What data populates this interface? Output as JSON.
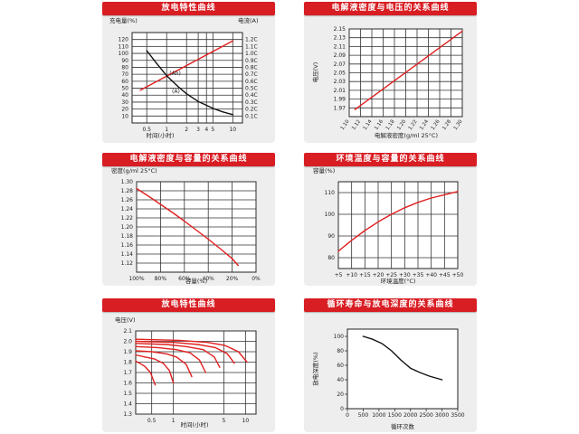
{
  "chart_data": [
    {
      "id": "c1",
      "type": "line",
      "title": "放电特性曲线",
      "xlabel": "时间(小时)",
      "ylabel": "充电量(%)",
      "y2label": "电流(A)",
      "xscale": "log",
      "xlim": [
        0.3,
        14
      ],
      "ylim": [
        0,
        130
      ],
      "y2lim": [
        0,
        1.3
      ],
      "xticks": [
        "0.5",
        "1",
        "2",
        "3",
        "4",
        "5",
        "10"
      ],
      "xtick_values": [
        0.5,
        1,
        2,
        3,
        4,
        5,
        10
      ],
      "yticks": [
        10,
        20,
        30,
        40,
        50,
        60,
        70,
        80,
        90,
        100,
        110,
        120
      ],
      "y2ticks": [
        "0.1C",
        "0.2C",
        "0.3C",
        "0.4C",
        "0.5C",
        "0.6C",
        "0.7C",
        "0.8C",
        "0.9C",
        "1.0C",
        "1.1C",
        "1.2C"
      ],
      "y2tick_values": [
        0.1,
        0.2,
        0.3,
        0.4,
        0.5,
        0.6,
        0.7,
        0.8,
        0.9,
        1.0,
        1.1,
        1.2
      ],
      "grid": true,
      "series": [
        {
          "name": "(Ah)",
          "axis": "left",
          "color": "#e02020",
          "x": [
            0.4,
            10
          ],
          "y": [
            47,
            118
          ]
        },
        {
          "name": "(A)",
          "axis": "right",
          "color": "#111111",
          "x": [
            0.5,
            0.7,
            1,
            1.5,
            2,
            3,
            5,
            7,
            10
          ],
          "y": [
            1.04,
            0.86,
            0.68,
            0.52,
            0.42,
            0.31,
            0.21,
            0.16,
            0.12
          ]
        }
      ],
      "annotations": [
        {
          "text": "(Ah)",
          "x": 1.1,
          "y": 69
        },
        {
          "text": "(A)",
          "x": 1.2,
          "y": 43
        }
      ]
    },
    {
      "id": "c2",
      "type": "line",
      "title": "电解液密度与电压的关系曲线",
      "xlabel": "电解液密度(g/ml 25°C)",
      "ylabel": "电压(V)",
      "xlim": [
        1.1,
        1.3
      ],
      "ylim": [
        1.95,
        2.15
      ],
      "xticks": [
        "1.10",
        "1.12",
        "1.14",
        "1.16",
        "1.18",
        "1.20",
        "1.22",
        "1.24",
        "1.26",
        "1.28",
        "1.30"
      ],
      "yticks": [
        "1.97",
        "1.99",
        "2.01",
        "2.03",
        "2.05",
        "2.07",
        "2.09",
        "2.11",
        "2.13",
        "2.15"
      ],
      "grid": true,
      "series": [
        {
          "color": "#e02020",
          "x": [
            1.11,
            1.3
          ],
          "y": [
            1.966,
            2.145
          ]
        }
      ]
    },
    {
      "id": "c3",
      "type": "line",
      "title": "电解液密度与容量的关系曲线",
      "xlabel": "容量(%)",
      "ylabel": "密度(g/ml 25°C)",
      "xlim": [
        100,
        0
      ],
      "ylim": [
        1.1,
        1.3
      ],
      "xticks": [
        "100%",
        "80%",
        "60%",
        "40%",
        "20%",
        "0%"
      ],
      "xtick_values": [
        100,
        80,
        60,
        40,
        20,
        0
      ],
      "yticks": [
        "1.12",
        "1.14",
        "1.16",
        "1.18",
        "1.20",
        "1.22",
        "1.24",
        "1.26",
        "1.28",
        "1.30"
      ],
      "grid": true,
      "series": [
        {
          "color": "#e02020",
          "x": [
            100,
            90,
            80,
            70,
            60,
            50,
            40,
            30,
            20,
            15
          ],
          "y": [
            1.285,
            1.268,
            1.25,
            1.232,
            1.213,
            1.193,
            1.173,
            1.152,
            1.13,
            1.115
          ]
        }
      ]
    },
    {
      "id": "c4",
      "type": "line",
      "title": "环境温度与容量的关系曲线",
      "xlabel": "环境温度(°C)",
      "ylabel": "容量(%)",
      "xlim": [
        5,
        50
      ],
      "ylim": [
        75,
        115
      ],
      "xticks": [
        "+5",
        "+10",
        "+15",
        "+20",
        "+25",
        "+30",
        "+35",
        "+40",
        "+45",
        "+50"
      ],
      "xtick_values": [
        5,
        10,
        15,
        20,
        25,
        30,
        35,
        40,
        45,
        50
      ],
      "yticks": [
        "80",
        "90",
        "100",
        "110"
      ],
      "ytick_values": [
        80,
        90,
        100,
        110
      ],
      "grid": true,
      "series": [
        {
          "color": "#e02020",
          "x": [
            5,
            10,
            15,
            20,
            25,
            30,
            35,
            40,
            45,
            50
          ],
          "y": [
            83,
            88,
            92.5,
            96.5,
            100,
            103,
            105.5,
            107.5,
            109,
            110.5
          ]
        }
      ]
    },
    {
      "id": "c5",
      "type": "line",
      "title": "放电特性曲线",
      "xlabel": "时间(小时)",
      "ylabel": "电压(V)",
      "xscale": "log",
      "xlim": [
        0.3,
        14
      ],
      "ylim": [
        1.3,
        2.1
      ],
      "xticks": [
        "0.5",
        "1",
        "5",
        "10"
      ],
      "xtick_values": [
        0.5,
        1,
        5,
        10
      ],
      "yticks": [
        "1.3",
        "1.4",
        "1.5",
        "1.6",
        "1.7",
        "1.8",
        "1.9",
        "2.0",
        "2.1"
      ],
      "grid": true,
      "series": [
        {
          "color": "#e02020",
          "x": [
            0.3,
            0.34,
            0.4,
            0.48,
            0.56
          ],
          "y": [
            1.81,
            1.79,
            1.76,
            1.7,
            1.58
          ]
        },
        {
          "color": "#e02020",
          "x": [
            0.3,
            0.4,
            0.55,
            0.72,
            0.88,
            1.0
          ],
          "y": [
            1.87,
            1.85,
            1.83,
            1.79,
            1.72,
            1.6
          ]
        },
        {
          "color": "#e02020",
          "x": [
            0.3,
            0.5,
            0.8,
            1.1,
            1.5,
            1.8
          ],
          "y": [
            1.91,
            1.9,
            1.88,
            1.85,
            1.78,
            1.66
          ]
        },
        {
          "color": "#e02020",
          "x": [
            0.3,
            0.6,
            1.1,
            1.7,
            2.3,
            2.8
          ],
          "y": [
            1.95,
            1.94,
            1.92,
            1.89,
            1.82,
            1.7
          ]
        },
        {
          "color": "#e02020",
          "x": [
            0.3,
            0.8,
            1.5,
            2.6,
            3.7,
            4.4
          ],
          "y": [
            1.98,
            1.97,
            1.95,
            1.92,
            1.85,
            1.75
          ]
        },
        {
          "color": "#e02020",
          "x": [
            0.3,
            1.0,
            2.2,
            3.8,
            5.6,
            7.0
          ],
          "y": [
            2.0,
            1.99,
            1.97,
            1.94,
            1.88,
            1.79
          ]
        },
        {
          "color": "#e02020",
          "x": [
            0.3,
            1.2,
            3.0,
            5.2,
            8.0,
            10.5
          ],
          "y": [
            2.02,
            2.01,
            1.99,
            1.96,
            1.9,
            1.8
          ]
        }
      ]
    },
    {
      "id": "c6",
      "type": "line",
      "title": "循环寿命与放电深度的关系曲线",
      "xlabel": "循环次数",
      "ylabel": "放电深度(%)",
      "xlim": [
        0,
        3500
      ],
      "ylim": [
        0,
        110
      ],
      "xticks": [
        "0",
        "500",
        "1000",
        "1500",
        "2000",
        "2500",
        "3000",
        "3500"
      ],
      "xtick_values": [
        0,
        500,
        1000,
        1500,
        2000,
        2500,
        3000,
        3500
      ],
      "yticks": [
        "0",
        "20",
        "40",
        "60",
        "80",
        "100"
      ],
      "ytick_values": [
        0,
        20,
        40,
        60,
        80,
        100
      ],
      "grid": false,
      "series": [
        {
          "color": "#111111",
          "x": [
            500,
            800,
            1100,
            1400,
            1700,
            2000,
            2300,
            2600,
            3000
          ],
          "y": [
            100,
            96,
            90,
            80,
            67,
            56,
            50,
            45,
            40
          ]
        }
      ]
    }
  ]
}
